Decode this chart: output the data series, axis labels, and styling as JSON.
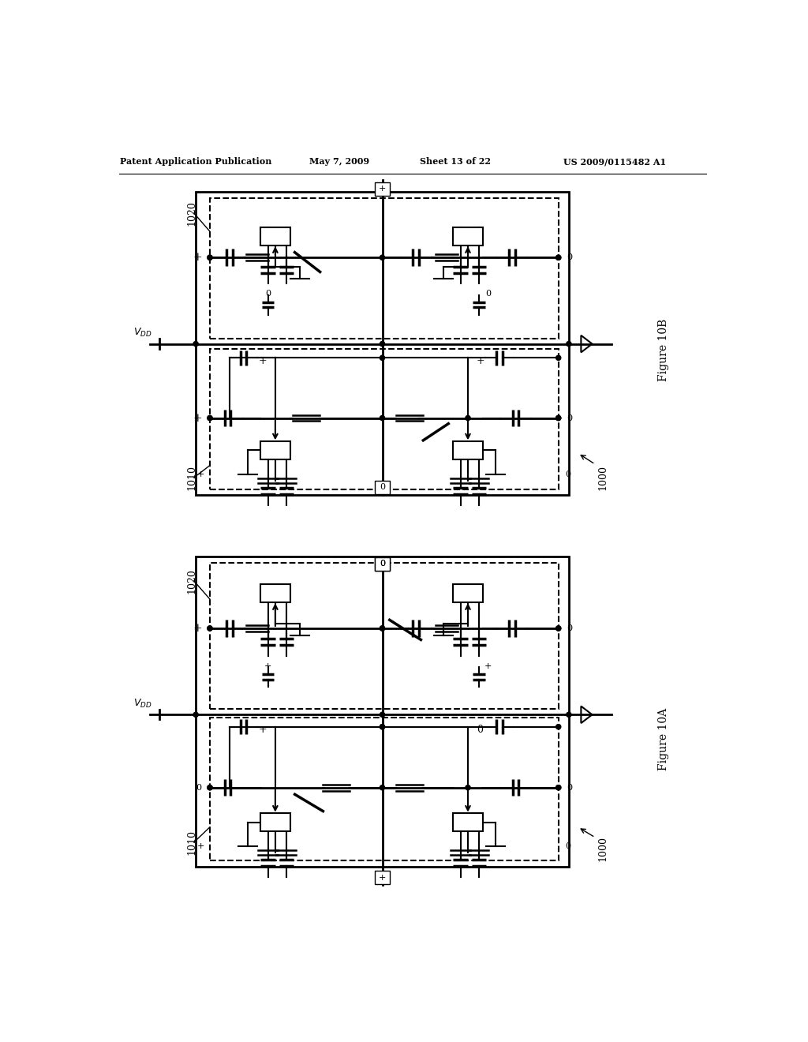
{
  "bg_color": "#ffffff",
  "header_text": "Patent Application Publication",
  "header_date": "May 7, 2009",
  "header_sheet": "Sheet 13 of 22",
  "header_patent": "US 2009/0115482 A1",
  "fig_top_label": "Figure 10B",
  "fig_bottom_label": "Figure 10A"
}
